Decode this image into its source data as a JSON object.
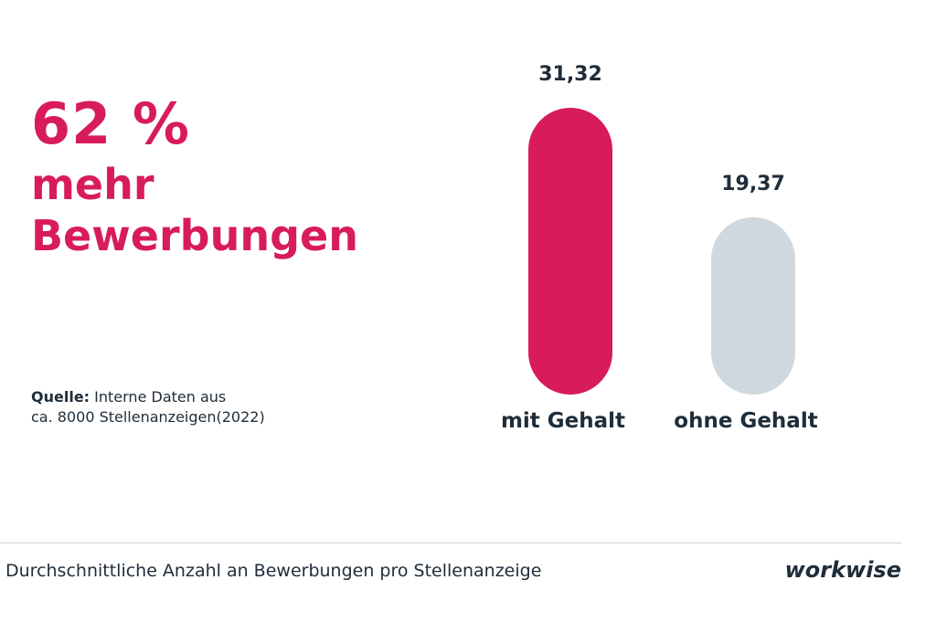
{
  "headline": {
    "percent": "62 %",
    "line2": "mehr",
    "line3": "Bewerbungen"
  },
  "source": {
    "label": "Quelle:",
    "text": "Interne Daten aus",
    "text2": "ca. 8000 Stellenanzeigen(2022)"
  },
  "footer": {
    "caption": "Durchschnittliche Anzahl an Bewerbungen pro Stellenanzeige",
    "brand": "workwise"
  },
  "chart_data": {
    "type": "bar",
    "categories": [
      "mit Gehalt",
      "ohne Gehalt"
    ],
    "values": [
      31.32,
      19.37
    ],
    "value_labels": [
      "31,32",
      "19,37"
    ],
    "colors": [
      "#d81b5c",
      "#cfd8de"
    ],
    "title": "",
    "xlabel": "",
    "ylabel": "",
    "grid": false
  }
}
